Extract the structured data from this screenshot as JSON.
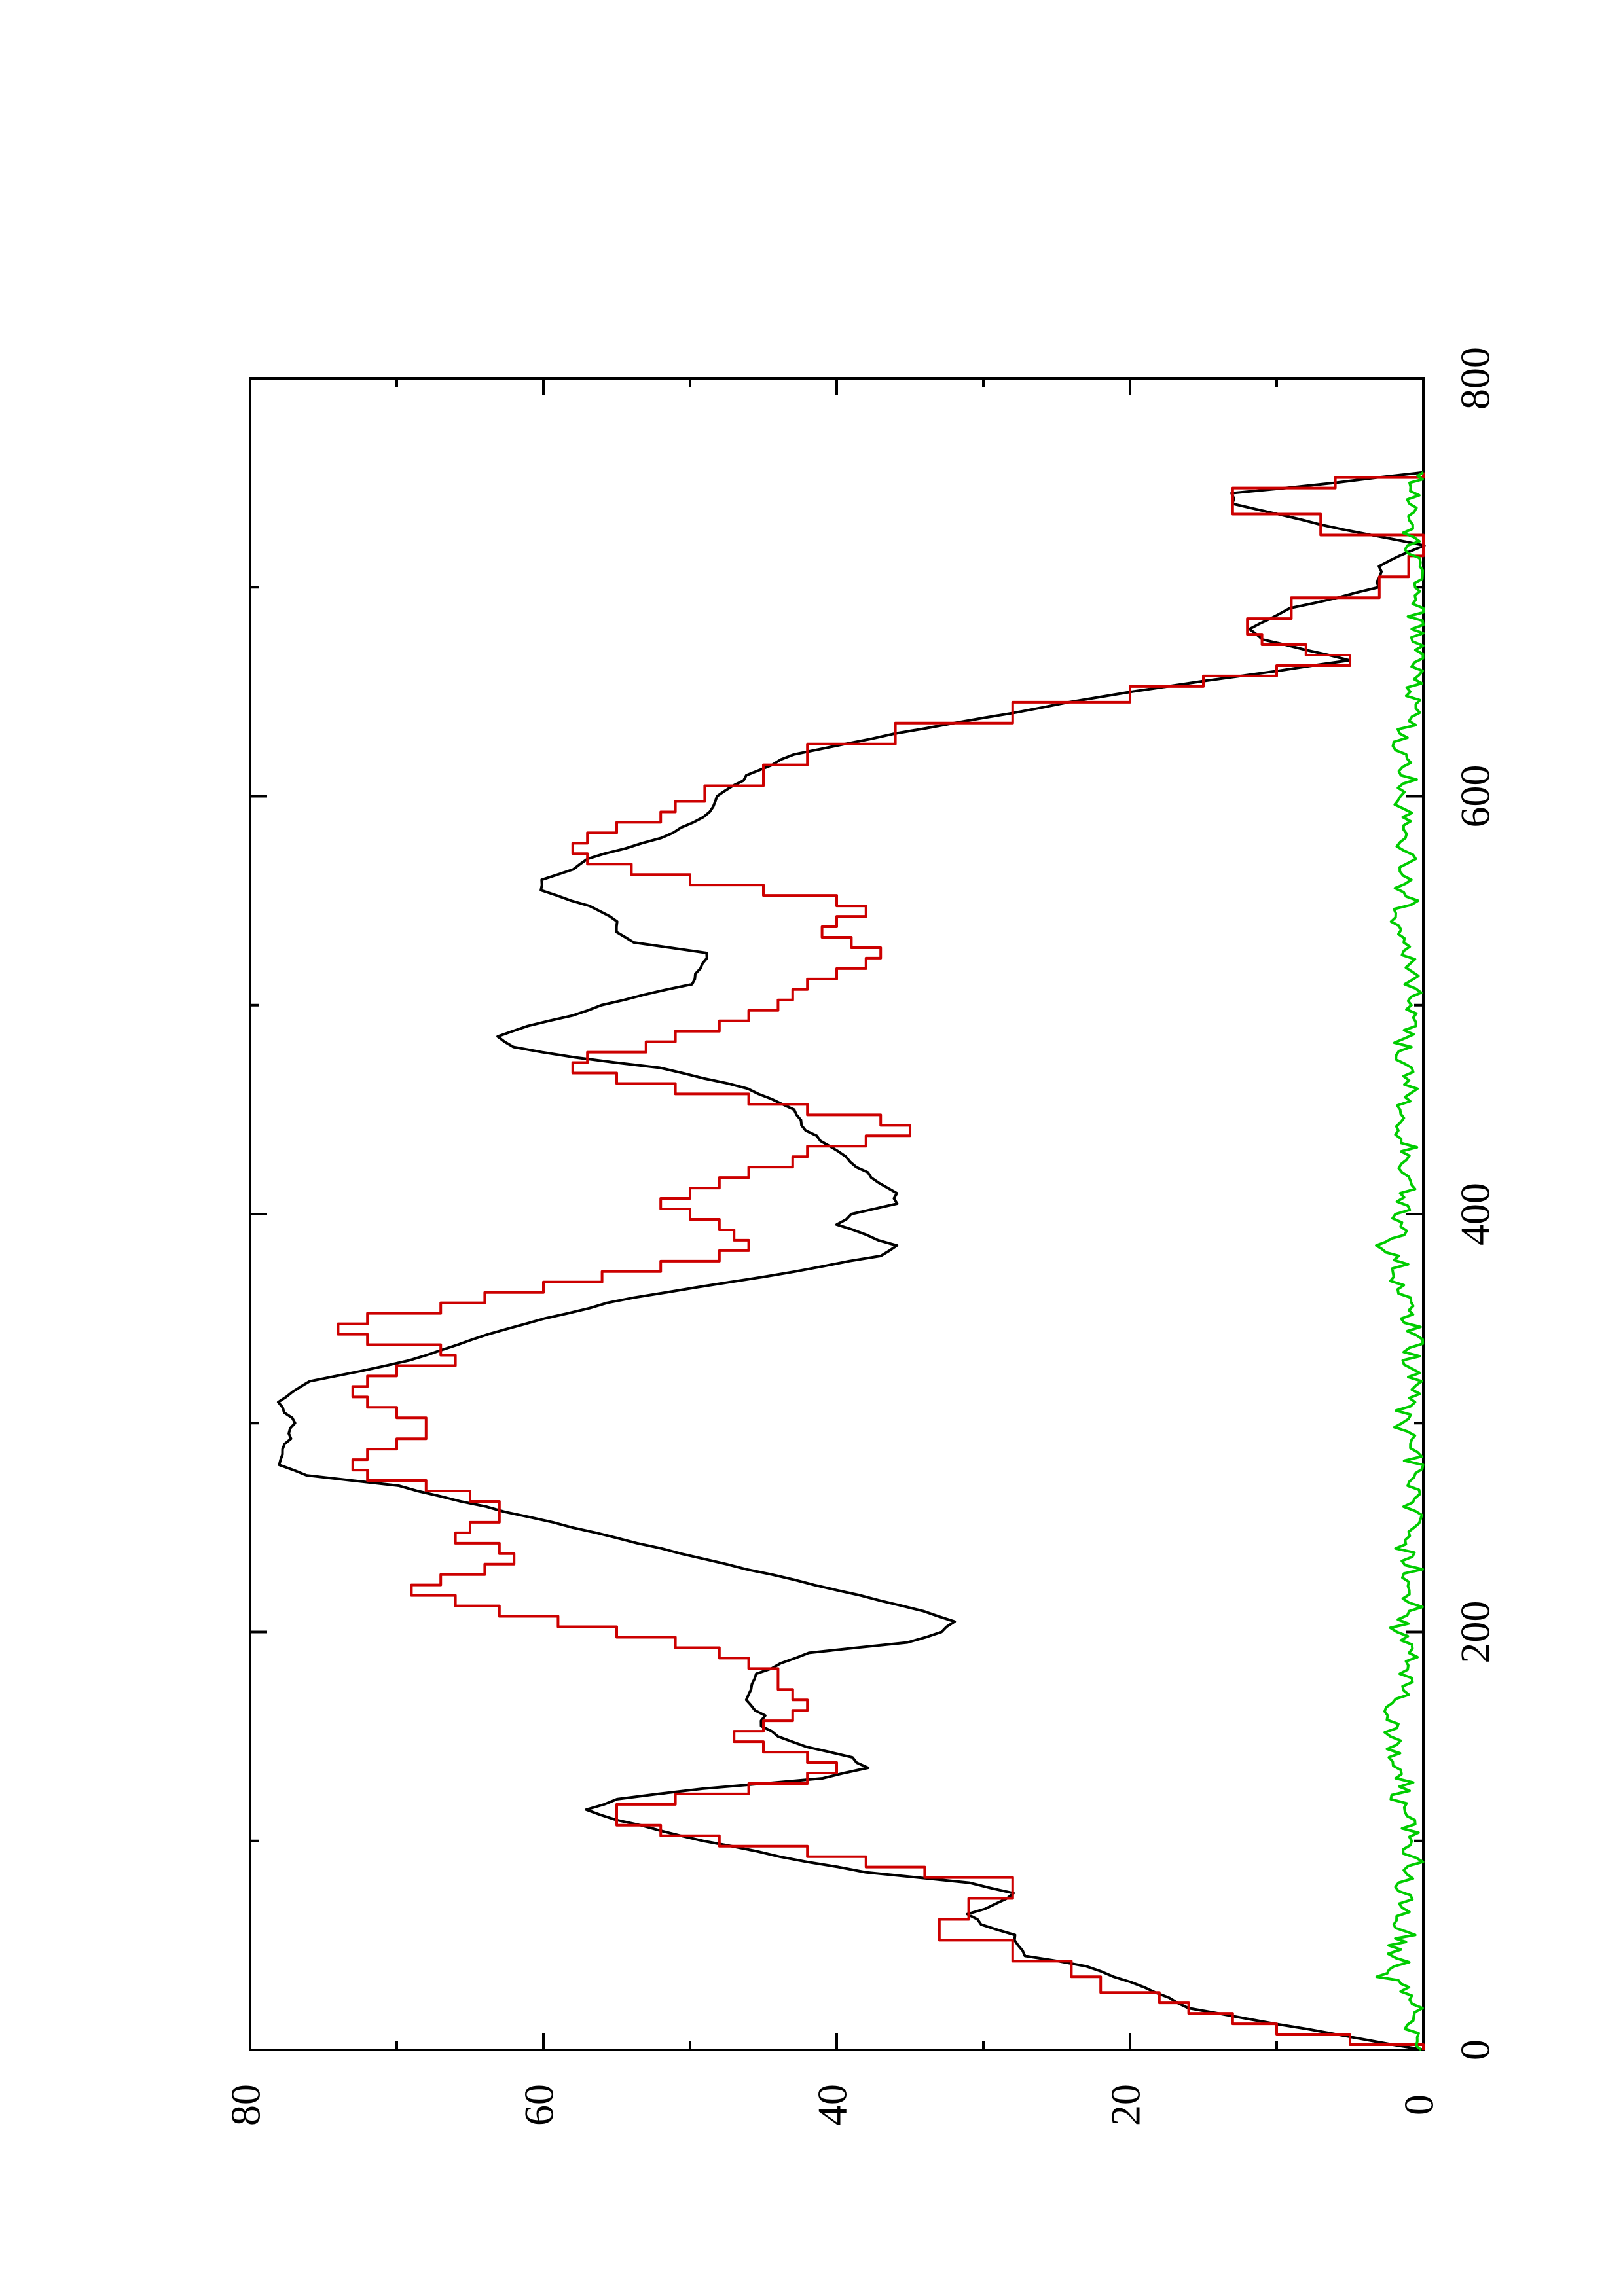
{
  "chart_data": {
    "type": "line",
    "orientation": "rotated-90-ccw",
    "xlim": [
      0,
      800
    ],
    "ylim": [
      0,
      80
    ],
    "x_ticks": [
      0,
      200,
      400,
      600,
      800
    ],
    "x_tick_labels": [
      "0",
      "200",
      "400",
      "600",
      "800"
    ],
    "x_minor_ticks": [
      100,
      300,
      500,
      700
    ],
    "y_ticks": [
      0,
      20,
      40,
      60,
      80
    ],
    "y_tick_labels": [
      "0",
      "20",
      "40",
      "60",
      "80"
    ],
    "y_minor_ticks": [
      10,
      30,
      50,
      70
    ],
    "grid": false,
    "series": [
      {
        "color": "#000000",
        "style": "smooth",
        "points": [
          [
            0,
            0
          ],
          [
            10,
            8
          ],
          [
            20,
            16
          ],
          [
            30,
            19
          ],
          [
            40,
            23
          ],
          [
            45,
            27
          ],
          [
            50,
            27.5
          ],
          [
            55,
            28
          ],
          [
            60,
            30
          ],
          [
            65,
            31
          ],
          [
            70,
            29
          ],
          [
            75,
            28
          ],
          [
            80,
            31
          ],
          [
            85,
            38
          ],
          [
            90,
            42
          ],
          [
            100,
            49
          ],
          [
            110,
            55
          ],
          [
            115,
            57
          ],
          [
            120,
            55
          ],
          [
            125,
            49
          ],
          [
            130,
            41
          ],
          [
            135,
            38
          ],
          [
            140,
            39
          ],
          [
            145,
            42
          ],
          [
            150,
            44
          ],
          [
            155,
            45
          ],
          [
            160,
            45
          ],
          [
            165,
            46
          ],
          [
            170,
            46
          ],
          [
            180,
            45.5
          ],
          [
            190,
            42
          ],
          [
            195,
            35
          ],
          [
            200,
            33
          ],
          [
            205,
            32
          ],
          [
            210,
            34
          ],
          [
            220,
            40
          ],
          [
            230,
            46
          ],
          [
            240,
            52
          ],
          [
            250,
            58
          ],
          [
            260,
            64
          ],
          [
            270,
            70
          ],
          [
            275,
            76
          ],
          [
            280,
            78
          ],
          [
            290,
            77.5
          ],
          [
            300,
            77
          ],
          [
            310,
            78
          ],
          [
            320,
            76
          ],
          [
            330,
            69
          ],
          [
            340,
            65
          ],
          [
            350,
            60
          ],
          [
            360,
            54
          ],
          [
            370,
            45
          ],
          [
            380,
            37
          ],
          [
            385,
            36
          ],
          [
            390,
            38
          ],
          [
            395,
            40
          ],
          [
            400,
            39
          ],
          [
            405,
            36
          ],
          [
            410,
            36
          ],
          [
            415,
            37
          ],
          [
            420,
            38
          ],
          [
            430,
            40
          ],
          [
            440,
            42
          ],
          [
            450,
            43
          ],
          [
            460,
            46
          ],
          [
            470,
            52
          ],
          [
            475,
            58
          ],
          [
            480,
            62
          ],
          [
            485,
            63
          ],
          [
            490,
            61
          ],
          [
            495,
            58
          ],
          [
            500,
            56
          ],
          [
            505,
            53
          ],
          [
            510,
            50
          ],
          [
            520,
            49
          ],
          [
            525,
            49
          ],
          [
            530,
            54
          ],
          [
            535,
            55
          ],
          [
            540,
            55
          ],
          [
            545,
            56
          ],
          [
            550,
            58
          ],
          [
            555,
            60
          ],
          [
            560,
            60
          ],
          [
            565,
            58
          ],
          [
            570,
            57
          ],
          [
            580,
            52
          ],
          [
            590,
            49
          ],
          [
            600,
            48
          ],
          [
            610,
            46
          ],
          [
            620,
            43
          ],
          [
            630,
            36
          ],
          [
            640,
            28
          ],
          [
            650,
            20
          ],
          [
            655,
            15
          ],
          [
            660,
            10
          ],
          [
            665,
            5
          ],
          [
            670,
            8
          ],
          [
            675,
            11
          ],
          [
            680,
            12
          ],
          [
            690,
            9
          ],
          [
            700,
            3
          ],
          [
            710,
            3
          ],
          [
            720,
            0
          ],
          [
            730,
            7
          ],
          [
            740,
            13
          ],
          [
            745,
            13
          ],
          [
            750,
            6
          ],
          [
            755,
            0
          ]
        ]
      },
      {
        "color": "#cc0000",
        "style": "step",
        "points": [
          [
            0,
            0
          ],
          [
            5,
            5
          ],
          [
            10,
            10
          ],
          [
            15,
            13
          ],
          [
            20,
            16
          ],
          [
            25,
            18
          ],
          [
            30,
            22
          ],
          [
            40,
            24
          ],
          [
            45,
            28
          ],
          [
            50,
            28
          ],
          [
            55,
            33
          ],
          [
            60,
            33
          ],
          [
            65,
            31
          ],
          [
            70,
            31
          ],
          [
            75,
            28
          ],
          [
            80,
            28
          ],
          [
            85,
            34
          ],
          [
            90,
            38
          ],
          [
            95,
            42
          ],
          [
            100,
            48
          ],
          [
            105,
            52
          ],
          [
            110,
            55
          ],
          [
            115,
            55
          ],
          [
            120,
            51
          ],
          [
            125,
            46
          ],
          [
            130,
            42
          ],
          [
            135,
            40
          ],
          [
            140,
            42
          ],
          [
            145,
            45
          ],
          [
            150,
            47
          ],
          [
            155,
            45
          ],
          [
            160,
            43
          ],
          [
            165,
            42
          ],
          [
            170,
            43
          ],
          [
            175,
            44
          ],
          [
            180,
            44
          ],
          [
            185,
            46
          ],
          [
            190,
            48
          ],
          [
            195,
            51
          ],
          [
            200,
            55
          ],
          [
            205,
            59
          ],
          [
            210,
            63
          ],
          [
            215,
            66
          ],
          [
            220,
            69
          ],
          [
            225,
            67
          ],
          [
            230,
            64
          ],
          [
            235,
            62
          ],
          [
            240,
            63
          ],
          [
            245,
            66
          ],
          [
            250,
            65
          ],
          [
            255,
            63
          ],
          [
            260,
            63
          ],
          [
            265,
            65
          ],
          [
            270,
            68
          ],
          [
            275,
            72
          ],
          [
            280,
            73
          ],
          [
            285,
            72
          ],
          [
            290,
            70
          ],
          [
            295,
            68
          ],
          [
            300,
            68
          ],
          [
            305,
            70
          ],
          [
            310,
            72
          ],
          [
            315,
            73
          ],
          [
            320,
            72
          ],
          [
            325,
            70
          ],
          [
            330,
            66
          ],
          [
            335,
            67
          ],
          [
            340,
            72
          ],
          [
            345,
            74
          ],
          [
            350,
            72
          ],
          [
            355,
            67
          ],
          [
            360,
            64
          ],
          [
            365,
            60
          ],
          [
            370,
            56
          ],
          [
            375,
            52
          ],
          [
            380,
            48
          ],
          [
            385,
            46
          ],
          [
            390,
            47
          ],
          [
            395,
            48
          ],
          [
            400,
            50
          ],
          [
            405,
            52
          ],
          [
            410,
            50
          ],
          [
            415,
            48
          ],
          [
            420,
            46
          ],
          [
            425,
            43
          ],
          [
            430,
            42
          ],
          [
            435,
            38
          ],
          [
            440,
            35
          ],
          [
            445,
            37
          ],
          [
            450,
            42
          ],
          [
            455,
            46
          ],
          [
            460,
            51
          ],
          [
            465,
            55
          ],
          [
            470,
            58
          ],
          [
            475,
            57
          ],
          [
            480,
            53
          ],
          [
            485,
            51
          ],
          [
            490,
            48
          ],
          [
            495,
            46
          ],
          [
            500,
            44
          ],
          [
            505,
            43
          ],
          [
            510,
            42
          ],
          [
            515,
            40
          ],
          [
            520,
            38
          ],
          [
            525,
            37
          ],
          [
            530,
            39
          ],
          [
            535,
            41
          ],
          [
            540,
            40
          ],
          [
            545,
            38
          ],
          [
            550,
            40
          ],
          [
            555,
            45
          ],
          [
            560,
            50
          ],
          [
            565,
            54
          ],
          [
            570,
            57
          ],
          [
            575,
            58
          ],
          [
            580,
            57
          ],
          [
            585,
            55
          ],
          [
            590,
            52
          ],
          [
            595,
            51
          ],
          [
            600,
            49
          ],
          [
            610,
            45
          ],
          [
            620,
            42
          ],
          [
            630,
            36
          ],
          [
            640,
            28
          ],
          [
            650,
            20
          ],
          [
            655,
            15
          ],
          [
            660,
            10
          ],
          [
            665,
            5
          ],
          [
            670,
            8
          ],
          [
            675,
            11
          ],
          [
            680,
            12
          ],
          [
            690,
            9
          ],
          [
            700,
            3
          ],
          [
            710,
            1
          ],
          [
            720,
            0
          ],
          [
            730,
            7
          ],
          [
            740,
            13
          ],
          [
            745,
            13
          ],
          [
            750,
            6
          ],
          [
            755,
            0
          ]
        ]
      },
      {
        "color": "#00cc00",
        "style": "noise",
        "points": [
          [
            0,
            0
          ],
          [
            10,
            0.8
          ],
          [
            20,
            0.5
          ],
          [
            30,
            1.2
          ],
          [
            35,
            2.5
          ],
          [
            40,
            1.5
          ],
          [
            50,
            2
          ],
          [
            55,
            1
          ],
          [
            60,
            2.2
          ],
          [
            70,
            1
          ],
          [
            80,
            1.5
          ],
          [
            90,
            0.5
          ],
          [
            100,
            1
          ],
          [
            110,
            0.8
          ],
          [
            120,
            1.6
          ],
          [
            130,
            1.2
          ],
          [
            140,
            2.4
          ],
          [
            150,
            1.8
          ],
          [
            160,
            2.6
          ],
          [
            170,
            1.5
          ],
          [
            180,
            1
          ],
          [
            190,
            0.5
          ],
          [
            200,
            2
          ],
          [
            210,
            0.6
          ],
          [
            220,
            0.9
          ],
          [
            230,
            0.7
          ],
          [
            240,
            1.2
          ],
          [
            250,
            0.5
          ],
          [
            260,
            0.8
          ],
          [
            270,
            1
          ],
          [
            280,
            0.6
          ],
          [
            290,
            0.9
          ],
          [
            300,
            1.5
          ],
          [
            310,
            1
          ],
          [
            320,
            0.6
          ],
          [
            330,
            0.8
          ],
          [
            340,
            0.5
          ],
          [
            350,
            0.9
          ],
          [
            360,
            1.2
          ],
          [
            370,
            2
          ],
          [
            380,
            1.5
          ],
          [
            385,
            2.8
          ],
          [
            390,
            1.2
          ],
          [
            400,
            1.6
          ],
          [
            410,
            1
          ],
          [
            420,
            1.8
          ],
          [
            430,
            0.9
          ],
          [
            440,
            1.3
          ],
          [
            450,
            1.6
          ],
          [
            460,
            0.8
          ],
          [
            470,
            1.1
          ],
          [
            480,
            1.4
          ],
          [
            490,
            0.9
          ],
          [
            500,
            1.2
          ],
          [
            510,
            0.6
          ],
          [
            520,
            1
          ],
          [
            530,
            1.3
          ],
          [
            540,
            2.5
          ],
          [
            550,
            1
          ],
          [
            560,
            1.4
          ],
          [
            570,
            0.8
          ],
          [
            580,
            1.6
          ],
          [
            590,
            1.1
          ],
          [
            600,
            1.5
          ],
          [
            610,
            0.9
          ],
          [
            620,
            1.7
          ],
          [
            630,
            1.2
          ],
          [
            640,
            0.8
          ],
          [
            650,
            0.5
          ],
          [
            660,
            0.3
          ],
          [
            670,
            0.6
          ],
          [
            680,
            0.2
          ],
          [
            690,
            0.5
          ],
          [
            700,
            0.2
          ],
          [
            710,
            0.3
          ],
          [
            720,
            1
          ],
          [
            730,
            0.5
          ],
          [
            740,
            0.4
          ],
          [
            750,
            0.6
          ],
          [
            755,
            0
          ]
        ]
      }
    ]
  }
}
